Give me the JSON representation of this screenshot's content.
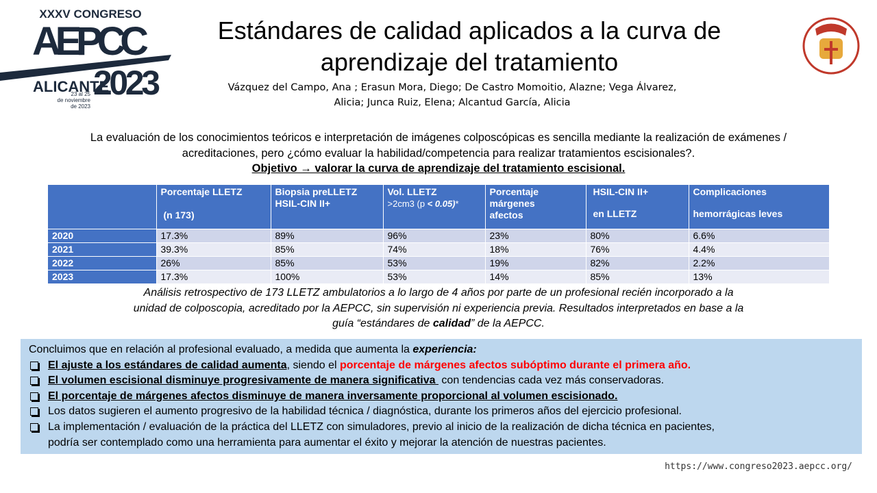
{
  "logo": {
    "edition": "XXXV CONGRESO",
    "name": "AEPCC",
    "city": "ALICANTE",
    "year": "2023",
    "dates": [
      "23 al 25",
      "de noviembre",
      "de 2023"
    ]
  },
  "header": {
    "title": [
      "Estándares de calidad aplicados a la curva de",
      "aprendizaje del tratamiento"
    ],
    "authors": [
      "Vázquez del Campo, Ana ; Erasun Mora, Diego; De Castro Momoitio, Alazne; Vega Álvarez,",
      "Alicia; Junca Ruiz, Elena; Alcantud García, Alicia"
    ]
  },
  "intro": {
    "text": [
      "La evaluación de los conocimientos teóricos e interpretación de imágenes colposcópicas es sencilla mediante la realización de exámenes /",
      "acreditaciones, pero ¿cómo evaluar la habilidad/competencia para realizar tratamientos escisionales?."
    ],
    "objective": "Objetivo → valorar la curva de aprendizaje del tratamiento escisional."
  },
  "table": {
    "headers": [
      [
        "Porcentaje LLETZ",
        "(n 173)"
      ],
      [
        "Biopsia preLLETZ",
        "HSIL-CIN II+"
      ],
      [
        "Vol. LLETZ",
        ">2cm3 (p ",
        "< 0.05)",
        "*"
      ],
      [
        "Porcentaje",
        "márgenes",
        "afectos"
      ],
      [
        "HSIL-CIN II+",
        "en LLETZ"
      ],
      [
        "Complicaciones",
        "hemorrágicas leves"
      ]
    ],
    "rows": [
      [
        "2020",
        "17.3%",
        "89%",
        "96%",
        "23%",
        "80%",
        "6.6%"
      ],
      [
        "2021",
        "39.3%",
        "85%",
        "74%",
        "18%",
        "76%",
        "4.4%"
      ],
      [
        "2022",
        "26%",
        "85%",
        "53%",
        "19%",
        "82%",
        "2.2%"
      ],
      [
        "2023",
        "17.3%",
        "100%",
        "53%",
        "14%",
        "85%",
        "13%"
      ]
    ]
  },
  "analysis": [
    "Análisis retrospectivo de 173 LLETZ ambulatorios a lo largo de 4 años por parte de un profesional recién incorporado a la",
    "unidad de colposcopia, acreditado por la AEPCC, sin supervisión ni experiencia previa. Resultados interpretados en base a la",
    "guía  “estándares de ",
    "calidad",
    "” de la AEPCC."
  ],
  "conclusion": {
    "lead": "Concluimos que en relación al profesional evaluado, a medida que aumenta la ",
    "lead_emphasis": "experiencia:",
    "items": [
      [
        "El ajuste a los estándares de calidad aumenta",
        ", siendo el ",
        "porcentaje de márgenes afectos subóptimo durante el primera año."
      ],
      [
        "El volumen escisional disminuye progresivamente de manera significativa ",
        " con tendencias cada vez más conservadoras."
      ],
      [
        "El porcentaje de márgenes afectos disminuye de manera inversamente proporcional al volumen escisionado."
      ],
      [
        "Los datos sugieren el aumento progresivo de la habilidad técnica / diagnóstica, durante los primeros años del ejercicio profesional."
      ],
      [
        "La implementación / evaluación de la práctica del LLETZ con simuladores, previo al inicio de la realización de dicha técnica en pacientes,",
        "podría ser contemplado como una herramienta para aumentar el éxito y mejorar la atención de nuestras pacientes."
      ]
    ]
  },
  "footer": {
    "url": "https://www.congreso2023.aepcc.org/"
  }
}
